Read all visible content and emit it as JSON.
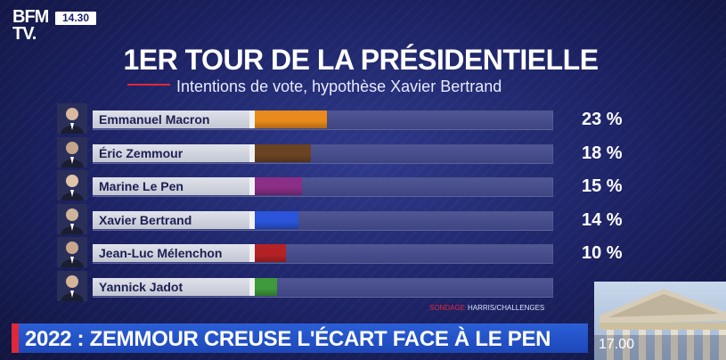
{
  "channel": {
    "logo_line1": "BFM",
    "logo_line2": "TV.",
    "time_badge": "14.30"
  },
  "header": {
    "title": "1ER TOUR DE LA PRÉSIDENTIELLE",
    "subtitle": "Intentions de vote, hypothèse Xavier Bertrand"
  },
  "chart_data": {
    "type": "bar",
    "orientation": "horizontal",
    "title": "1ER TOUR DE LA PRÉSIDENTIELLE",
    "subtitle": "Intentions de vote, hypothèse Xavier Bertrand",
    "categories": [
      "Emmanuel Macron",
      "Éric Zemmour",
      "Marine Le Pen",
      "Xavier Bertrand",
      "Jean-Luc Mélenchon",
      "Yannick Jadot"
    ],
    "values": [
      23,
      18,
      15,
      14,
      10,
      null
    ],
    "value_labels": [
      "23 %",
      "18 %",
      "15 %",
      "14 %",
      "10 %",
      ""
    ],
    "bar_values_estimated": [
      23,
      18,
      15,
      14,
      10,
      7
    ],
    "colors": [
      "#e88a1c",
      "#6b4322",
      "#8a2e86",
      "#2a54d9",
      "#b52226",
      "#3e9a3a"
    ],
    "xlim": [
      0,
      100
    ],
    "grid": false,
    "legend": "none"
  },
  "source": {
    "label": "SONDAGE",
    "value": "HARRIS/CHALLENGES"
  },
  "ticker": {
    "headline": "2022 : ZEMMOUR CREUSE L'ÉCART FACE À LE PEN"
  },
  "next_program": {
    "time": "17.00"
  }
}
